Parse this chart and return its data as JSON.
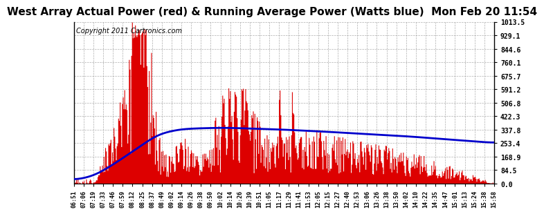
{
  "title": "West Array Actual Power (red) & Running Average Power (Watts blue)  Mon Feb 20 11:54",
  "copyright": "Copyright 2011 Cartronics.com",
  "ylabel_max": 1013.5,
  "ylabel_min": 0.0,
  "ytick_values": [
    0.0,
    84.5,
    168.9,
    253.4,
    337.8,
    422.3,
    506.8,
    591.2,
    675.7,
    760.1,
    844.6,
    929.1,
    1013.5
  ],
  "bar_color": "#dd0000",
  "line_color": "#0000cc",
  "background_color": "#ffffff",
  "grid_color": "#999999",
  "title_fontsize": 11,
  "copyright_fontsize": 7,
  "xtick_labels": [
    "06:51",
    "07:06",
    "07:19",
    "07:33",
    "07:46",
    "07:59",
    "08:12",
    "08:25",
    "08:37",
    "08:49",
    "09:02",
    "09:14",
    "09:26",
    "09:38",
    "09:50",
    "10:02",
    "10:14",
    "10:26",
    "10:39",
    "10:51",
    "11:05",
    "11:17",
    "11:29",
    "11:41",
    "11:53",
    "12:05",
    "12:15",
    "12:27",
    "12:40",
    "12:53",
    "13:06",
    "13:26",
    "13:38",
    "13:50",
    "14:02",
    "14:10",
    "14:22",
    "14:35",
    "14:47",
    "15:01",
    "15:13",
    "15:24",
    "15:38",
    "15:58"
  ],
  "avg_profile_points": {
    "t": [
      0.0,
      0.05,
      0.1,
      0.15,
      0.2,
      0.25,
      0.28,
      0.32,
      0.36,
      0.42,
      0.5,
      0.6,
      0.7,
      0.8,
      0.9,
      1.0
    ],
    "v": [
      20,
      50,
      130,
      220,
      310,
      340,
      345,
      348,
      350,
      345,
      338,
      325,
      310,
      295,
      275,
      255
    ]
  }
}
